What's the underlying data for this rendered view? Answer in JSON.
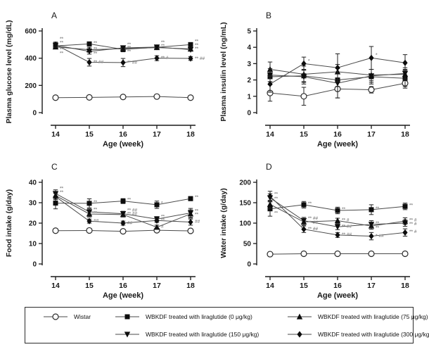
{
  "colors": {
    "axis": "#1a1a1a",
    "line": "#4a4a4a",
    "marker": "#0d0d0d",
    "error_bar": "#222222",
    "annotation": "#8c8c8c",
    "wistar_fill": "#ffffff"
  },
  "legend": {
    "items": [
      {
        "label": "Wistar",
        "marker": "open-circle"
      },
      {
        "label": "WBKDF treated with liraglutide (0 μg/kg)",
        "marker": "filled-square"
      },
      {
        "label": "WBKDF treated with liraglutide (75 μg/kg)",
        "marker": "filled-triangle-up"
      },
      {
        "label": "WBKDF treated with liraglutide (150 μg/kg)",
        "marker": "filled-triangle-down"
      },
      {
        "label": "WBKDF treated with liraglutide (300 μg/kg)",
        "marker": "filled-diamond"
      }
    ]
  },
  "chart_data": [
    {
      "panel": "A",
      "type": "line",
      "ylabel": "Plasma glucose level (mg/dL)",
      "xlabel": "Age (week)",
      "x": [
        14,
        15,
        16,
        17,
        18
      ],
      "ylim": [
        0,
        600
      ],
      "yticks": [
        0,
        200,
        400,
        600
      ],
      "grid": false,
      "series": [
        {
          "name": "Wistar",
          "marker": "open-circle",
          "values": [
            110,
            112,
            115,
            118,
            110
          ],
          "err": [
            6,
            6,
            6,
            6,
            6
          ]
        },
        {
          "name": "WBKDF 0 ug/kg",
          "marker": "filled-square",
          "values": [
            490,
            505,
            465,
            480,
            500
          ],
          "err": [
            22,
            15,
            18,
            15,
            12
          ]
        },
        {
          "name": "WBKDF 75 ug/kg",
          "marker": "filled-triangle-up",
          "values": [
            483,
            462,
            470,
            478,
            468
          ],
          "err": [
            15,
            18,
            15,
            12,
            12
          ]
        },
        {
          "name": "WBKDF 150 ug/kg",
          "marker": "filled-triangle-down",
          "values": [
            495,
            450,
            476,
            482,
            463
          ],
          "err": [
            15,
            20,
            15,
            12,
            12
          ]
        },
        {
          "name": "WBKDF 300 ug/kg",
          "marker": "filled-diamond",
          "values": [
            500,
            370,
            368,
            400,
            398
          ],
          "err": [
            18,
            28,
            30,
            18,
            14
          ]
        }
      ],
      "annotations": [
        {
          "week": 14,
          "y": 545,
          "text": "**"
        },
        {
          "week": 14,
          "y": 518,
          "text": "**"
        },
        {
          "week": 14,
          "y": 468,
          "text": "**"
        },
        {
          "week": 14,
          "y": 440,
          "text": "**"
        },
        {
          "week": 15,
          "y": 515,
          "text": "**"
        },
        {
          "week": 15,
          "y": 470,
          "text": "**"
        },
        {
          "week": 15,
          "y": 438,
          "text": "**"
        },
        {
          "week": 15,
          "y": 375,
          "text": "** ##"
        },
        {
          "week": 16,
          "y": 505,
          "text": "**"
        },
        {
          "week": 16,
          "y": 480,
          "text": "**"
        },
        {
          "week": 16,
          "y": 452,
          "text": "**"
        },
        {
          "week": 16,
          "y": 372,
          "text": "** ##"
        },
        {
          "week": 17,
          "y": 520,
          "text": "**"
        },
        {
          "week": 17,
          "y": 494,
          "text": "**"
        },
        {
          "week": 17,
          "y": 405,
          "text": "** #"
        },
        {
          "week": 18,
          "y": 528,
          "text": "**"
        },
        {
          "week": 18,
          "y": 500,
          "text": "**"
        },
        {
          "week": 18,
          "y": 472,
          "text": "**"
        },
        {
          "week": 18,
          "y": 402,
          "text": "** ##"
        }
      ]
    },
    {
      "panel": "B",
      "type": "line",
      "ylabel": "Plasma insulin level (ng/mL)",
      "xlabel": "Age (week)",
      "x": [
        14,
        15,
        16,
        17,
        18
      ],
      "ylim": [
        0,
        5
      ],
      "yticks": [
        0,
        1,
        2,
        3,
        4,
        5
      ],
      "grid": false,
      "series": [
        {
          "name": "Wistar",
          "marker": "open-circle",
          "values": [
            1.2,
            1.0,
            1.45,
            1.4,
            1.8
          ],
          "err": [
            0.5,
            0.55,
            0.55,
            0.2,
            0.3
          ]
        },
        {
          "name": "WBKDF 0 ug/kg",
          "marker": "filled-square",
          "values": [
            2.2,
            2.25,
            2.0,
            2.2,
            2.1
          ],
          "err": [
            0.3,
            0.35,
            0.4,
            0.45,
            0.5
          ]
        },
        {
          "name": "WBKDF 75 ug/kg",
          "marker": "filled-triangle-up",
          "values": [
            2.65,
            2.35,
            2.5,
            2.3,
            2.35
          ],
          "err": [
            0.45,
            0.5,
            0.45,
            0.35,
            0.3
          ]
        },
        {
          "name": "WBKDF 150 ug/kg",
          "marker": "filled-triangle-down",
          "values": [
            2.3,
            2.2,
            1.8,
            2.25,
            2.4
          ],
          "err": [
            0.4,
            0.45,
            0.9,
            0.4,
            0.35
          ]
        },
        {
          "name": "WBKDF 300 ug/kg",
          "marker": "filled-diamond",
          "values": [
            1.75,
            3.0,
            2.75,
            3.35,
            3.05
          ],
          "err": [
            0.5,
            0.4,
            0.85,
            0.7,
            0.5
          ]
        }
      ],
      "annotations": [
        {
          "week": 15,
          "y": 3.2,
          "text": "*"
        },
        {
          "week": 17,
          "y": 3.55,
          "text": "*"
        }
      ]
    },
    {
      "panel": "C",
      "type": "line",
      "ylabel": "Food intake (g/day)",
      "xlabel": "Age (week)",
      "x": [
        14,
        15,
        16,
        17,
        18
      ],
      "ylim": [
        0,
        40
      ],
      "yticks": [
        0,
        10,
        20,
        30,
        40
      ],
      "grid": false,
      "series": [
        {
          "name": "Wistar",
          "marker": "open-circle",
          "values": [
            16.3,
            16.4,
            16.0,
            16.5,
            16.2
          ],
          "err": [
            0.6,
            0.6,
            0.6,
            0.6,
            0.6
          ]
        },
        {
          "name": "WBKDF 0 ug/kg",
          "marker": "filled-square",
          "values": [
            29.8,
            29.7,
            30.8,
            29.0,
            32.0
          ],
          "err": [
            2.8,
            2.2,
            1.2,
            1.8,
            1.0
          ]
        },
        {
          "name": "WBKDF 75 ug/kg",
          "marker": "filled-triangle-up",
          "values": [
            33.5,
            24.5,
            24.2,
            18.0,
            24.5
          ],
          "err": [
            1.5,
            1.5,
            1.2,
            1.0,
            2.0
          ]
        },
        {
          "name": "WBKDF 150 ug/kg",
          "marker": "filled-triangle-down",
          "values": [
            34.5,
            25.5,
            24.6,
            22.0,
            25.0
          ],
          "err": [
            1.8,
            1.5,
            1.2,
            1.2,
            2.2
          ]
        },
        {
          "name": "WBKDF 300 ug/kg",
          "marker": "filled-diamond",
          "values": [
            33.0,
            21.0,
            20.0,
            21.3,
            20.5
          ],
          "err": [
            1.5,
            1.0,
            1.0,
            1.0,
            1.5
          ]
        }
      ],
      "annotations": [
        {
          "week": 14,
          "y": 37.2,
          "text": "**"
        },
        {
          "week": 14,
          "y": 35.4,
          "text": "**"
        },
        {
          "week": 15,
          "y": 30.6,
          "text": "**"
        },
        {
          "week": 15,
          "y": 26.9,
          "text": "**"
        },
        {
          "week": 15,
          "y": 25.1,
          "text": "**"
        },
        {
          "week": 15,
          "y": 21.4,
          "text": "##"
        },
        {
          "week": 16,
          "y": 31.7,
          "text": "**"
        },
        {
          "week": 16,
          "y": 26.5,
          "text": "** ##"
        },
        {
          "week": 16,
          "y": 24.8,
          "text": "** ##"
        },
        {
          "week": 16,
          "y": 20.4,
          "text": "##"
        },
        {
          "week": 17,
          "y": 30.0,
          "text": "*"
        },
        {
          "week": 17,
          "y": 23.5,
          "text": "**"
        },
        {
          "week": 17,
          "y": 21.7,
          "text": "**"
        },
        {
          "week": 17,
          "y": 18.7,
          "text": "#"
        },
        {
          "week": 18,
          "y": 33.0,
          "text": "**"
        },
        {
          "week": 18,
          "y": 26.2,
          "text": "**"
        },
        {
          "week": 18,
          "y": 24.4,
          "text": "**"
        },
        {
          "week": 18,
          "y": 21.0,
          "text": "##"
        }
      ]
    },
    {
      "panel": "D",
      "type": "line",
      "ylabel": "Water intake (g/day)",
      "xlabel": "Age (week)",
      "x": [
        14,
        15,
        16,
        17,
        18
      ],
      "ylim": [
        0,
        200
      ],
      "yticks": [
        0,
        50,
        100,
        150,
        200
      ],
      "grid": false,
      "series": [
        {
          "name": "Wistar",
          "marker": "open-circle",
          "values": [
            24,
            25,
            25,
            25,
            25
          ],
          "err": [
            2,
            2,
            2,
            2,
            2
          ]
        },
        {
          "name": "WBKDF 0 ug/kg",
          "marker": "filled-square",
          "values": [
            135,
            145,
            131,
            133,
            141
          ],
          "err": [
            18,
            8,
            8,
            12,
            8
          ]
        },
        {
          "name": "WBKDF 75 ug/kg",
          "marker": "filled-triangle-up",
          "values": [
            146,
            103,
            106,
            93,
            105
          ],
          "err": [
            10,
            8,
            6,
            8,
            8
          ]
        },
        {
          "name": "WBKDF 150 ug/kg",
          "marker": "filled-triangle-down",
          "values": [
            162,
            106,
            91,
            97,
            100
          ],
          "err": [
            10,
            8,
            7,
            9,
            8
          ]
        },
        {
          "name": "WBKDF 300 ug/kg",
          "marker": "filled-diamond",
          "values": [
            166,
            85,
            71,
            68,
            77
          ],
          "err": [
            12,
            8,
            6,
            9,
            9
          ]
        }
      ],
      "annotations": [
        {
          "week": 14,
          "y": 172,
          "text": "**"
        },
        {
          "week": 14,
          "y": 161,
          "text": "**"
        },
        {
          "week": 14,
          "y": 126,
          "text": "**"
        },
        {
          "week": 15,
          "y": 149,
          "text": "**"
        },
        {
          "week": 15,
          "y": 113,
          "text": "** ##"
        },
        {
          "week": 15,
          "y": 103,
          "text": "** ##"
        },
        {
          "week": 15,
          "y": 87,
          "text": "** ##"
        },
        {
          "week": 16,
          "y": 135,
          "text": "**"
        },
        {
          "week": 16,
          "y": 109,
          "text": "** #"
        },
        {
          "week": 16,
          "y": 93,
          "text": "** ##"
        },
        {
          "week": 16,
          "y": 73,
          "text": "** ##"
        },
        {
          "week": 17,
          "y": 137,
          "text": "**"
        },
        {
          "week": 17,
          "y": 101,
          "text": "**"
        },
        {
          "week": 17,
          "y": 90,
          "text": "**"
        },
        {
          "week": 17,
          "y": 70,
          "text": "* ##"
        },
        {
          "week": 18,
          "y": 145,
          "text": "**"
        },
        {
          "week": 18,
          "y": 109,
          "text": "** #"
        },
        {
          "week": 18,
          "y": 99,
          "text": "** #"
        },
        {
          "week": 18,
          "y": 80,
          "text": "** #"
        }
      ]
    }
  ]
}
